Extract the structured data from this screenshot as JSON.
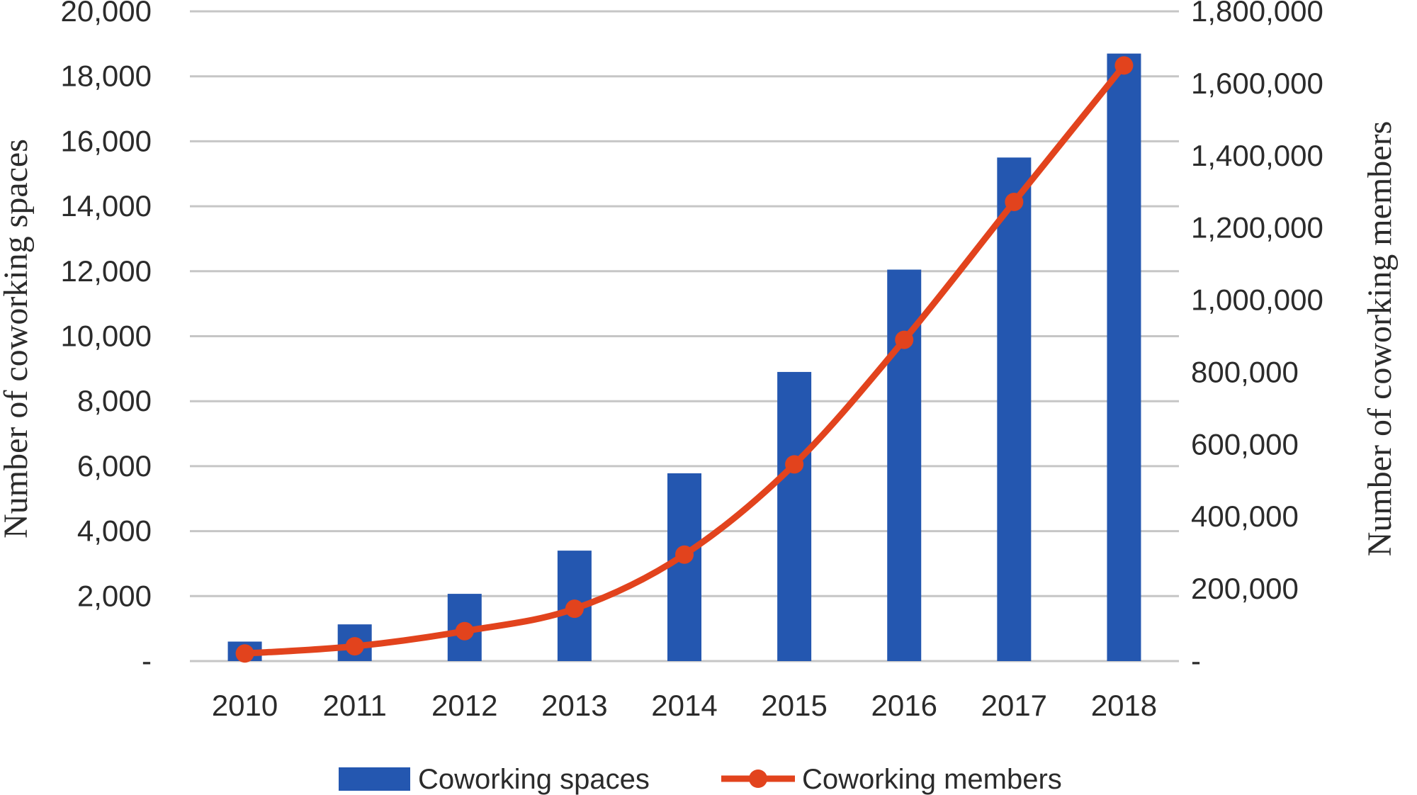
{
  "chart_data": {
    "type": "bar",
    "categories": [
      "2010",
      "2011",
      "2012",
      "2013",
      "2014",
      "2015",
      "2016",
      "2017",
      "2018"
    ],
    "series": [
      {
        "name": "Coworking spaces",
        "type": "bar",
        "axis": "left",
        "color": "#2457b0",
        "values": [
          600,
          1130,
          2070,
          3400,
          5780,
          8900,
          12050,
          15500,
          18700
        ]
      },
      {
        "name": "Coworking members",
        "type": "line",
        "axis": "right",
        "color": "#e2431d",
        "values": [
          21000,
          41000,
          83000,
          145000,
          295000,
          545000,
          890000,
          1272000,
          1650000
        ]
      }
    ],
    "ylabel_left": "Number of coworking spaces",
    "ylabel_right": "Number of coworking members",
    "ylim_left": [
      0,
      20000
    ],
    "ylim_right": [
      0,
      1800000
    ],
    "yticks_left": [
      "-",
      "2,000",
      "4,000",
      "6,000",
      "8,000",
      "10,000",
      "12,000",
      "14,000",
      "16,000",
      "18,000",
      "20,000"
    ],
    "yticks_right": [
      "-",
      "200,000",
      "400,000",
      "600,000",
      "800,000",
      "1,000,000",
      "1,200,000",
      "1,400,000",
      "1,600,000",
      "1,800,000"
    ],
    "grid": true,
    "legend_position": "bottom"
  }
}
